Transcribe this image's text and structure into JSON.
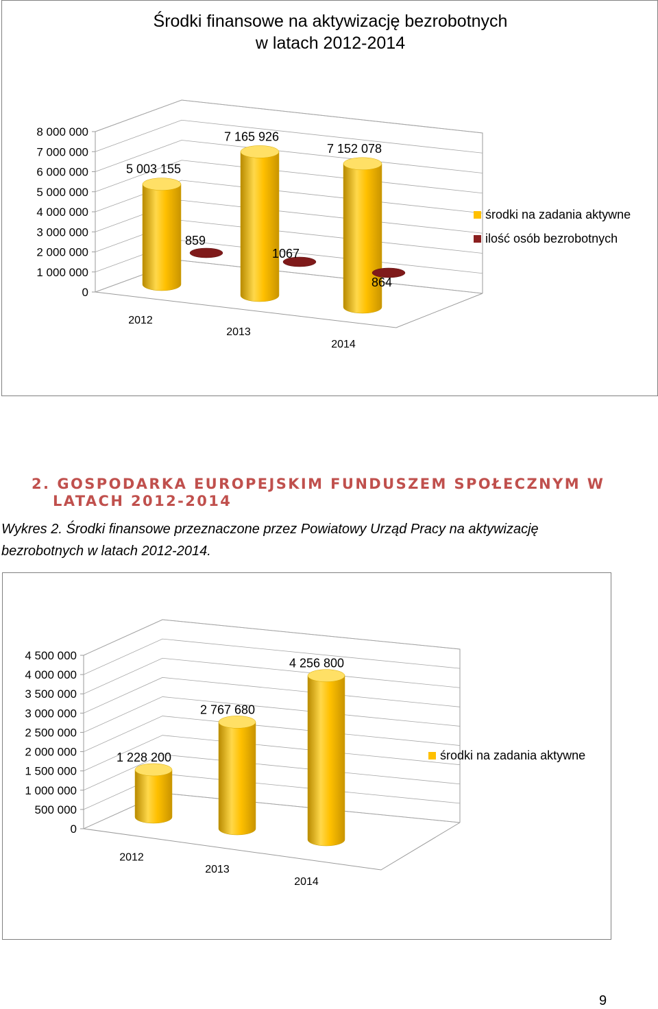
{
  "chart_data": [
    {
      "type": "bar",
      "title": "Środki finansowe na aktywizację bezrobotnych",
      "subtitle": "w latach 2012-2014",
      "categories": [
        "2012",
        "2013",
        "2014"
      ],
      "series": [
        {
          "name": "środki na zadania aktywne",
          "values": [
            5003155,
            7165926,
            7152078
          ],
          "labels": [
            "5 003 155",
            "7 165 926",
            "7 152 078"
          ],
          "color": "#ffc000"
        },
        {
          "name": "ilość osób bezrobotnych",
          "values": [
            859,
            1067,
            864
          ],
          "labels": [
            "859",
            "1067",
            "864"
          ],
          "color": "#7f1f1f"
        }
      ],
      "ylim": [
        0,
        8000000
      ],
      "yticks": [
        "0",
        "1 000 000",
        "2 000 000",
        "3 000 000",
        "4 000 000",
        "5 000 000",
        "6 000 000",
        "7 000 000",
        "8 000 000"
      ],
      "grid": true,
      "legend": "right",
      "style": "3d-cylinder"
    },
    {
      "type": "bar",
      "title": "",
      "categories": [
        "2012",
        "2013",
        "2014"
      ],
      "series": [
        {
          "name": "środki na zadania aktywne",
          "values": [
            1228200,
            2767680,
            4256800
          ],
          "labels": [
            "1 228 200",
            "2 767 680",
            "4 256 800"
          ],
          "color": "#ffc000"
        }
      ],
      "ylim": [
        0,
        4500000
      ],
      "yticks": [
        "0",
        "500 000",
        "1 000 000",
        "1 500 000",
        "2 000 000",
        "2 500 000",
        "3 000 000",
        "3 500 000",
        "4 000 000",
        "4 500 000"
      ],
      "grid": true,
      "legend": "right",
      "style": "3d-cylinder"
    }
  ],
  "section": {
    "number": "2.",
    "heading_line1": "GOSPODARKA EUROPEJSKIM FUNDUSZEM SPOŁECZNYM W",
    "heading_line2": "LATACH 2012-2014"
  },
  "caption": {
    "line1": "Wykres 2. Środki finansowe przeznaczone przez Powiatowy Urząd Pracy na aktywizację",
    "line2": "bezrobotnych w latach 2012-2014."
  },
  "page_number": "9"
}
